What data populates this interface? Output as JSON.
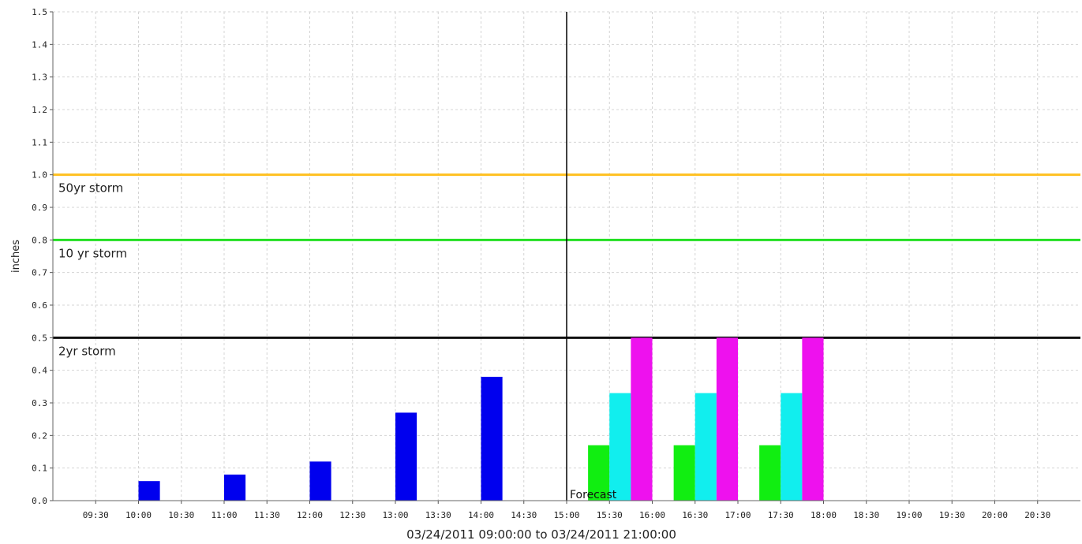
{
  "chart_data": {
    "type": "bar",
    "title": "",
    "xlabel": "03/24/2011 09:00:00 to 03/24/2011 21:00:00",
    "ylabel": "inches",
    "ylim": [
      0,
      1.5
    ],
    "y_ticks": [
      0.0,
      0.1,
      0.2,
      0.3,
      0.4,
      0.5,
      0.6,
      0.7,
      0.8,
      0.9,
      1.0,
      1.1,
      1.2,
      1.3,
      1.4,
      1.5
    ],
    "y_tick_labels": [
      "0.0",
      "0.1",
      "0.2",
      "0.3",
      "0.4",
      "0.5",
      "0.6",
      "0.7",
      "0.8",
      "0.9",
      "1.0",
      "1.1",
      "1.2",
      "1.3",
      "1.4",
      "1.5"
    ],
    "x_range": [
      "09:00",
      "21:00"
    ],
    "x_tick_labels": [
      "09:30",
      "10:00",
      "10:30",
      "11:00",
      "11:30",
      "12:00",
      "12:30",
      "13:00",
      "13:30",
      "14:00",
      "14:30",
      "15:00",
      "15:30",
      "16:00",
      "16:30",
      "17:00",
      "17:30",
      "18:00",
      "18:30",
      "19:00",
      "19:30",
      "20:00",
      "20:30"
    ],
    "grid": true,
    "forecast_divider": {
      "time": "15:00",
      "label": "Forecast"
    },
    "thresholds": [
      {
        "label": "50yr storm",
        "value": 1.0,
        "color": "#ffc020"
      },
      {
        "label": "10 yr storm",
        "value": 0.8,
        "color": "#22e022"
      },
      {
        "label": "2yr storm",
        "value": 0.5,
        "color": "#111111"
      }
    ],
    "series": [
      {
        "color": "#0000ee",
        "bars": [
          {
            "start": "10:00",
            "end": "10:15",
            "value": 0.06
          },
          {
            "start": "11:00",
            "end": "11:15",
            "value": 0.08
          },
          {
            "start": "12:00",
            "end": "12:15",
            "value": 0.12
          },
          {
            "start": "13:00",
            "end": "13:15",
            "value": 0.27
          },
          {
            "start": "14:00",
            "end": "14:15",
            "value": 0.38
          }
        ]
      },
      {
        "color": "#11ee11",
        "bars": [
          {
            "start": "15:15",
            "end": "15:30",
            "value": 0.17
          },
          {
            "start": "16:15",
            "end": "16:30",
            "value": 0.17
          },
          {
            "start": "17:15",
            "end": "17:30",
            "value": 0.17
          }
        ]
      },
      {
        "color": "#11eeee",
        "bars": [
          {
            "start": "15:30",
            "end": "15:45",
            "value": 0.33
          },
          {
            "start": "16:30",
            "end": "16:45",
            "value": 0.33
          },
          {
            "start": "17:30",
            "end": "17:45",
            "value": 0.33
          }
        ]
      },
      {
        "color": "#ee11ee",
        "bars": [
          {
            "start": "15:45",
            "end": "16:00",
            "value": 0.5
          },
          {
            "start": "16:45",
            "end": "17:00",
            "value": 0.5
          },
          {
            "start": "17:45",
            "end": "18:00",
            "value": 0.5
          }
        ]
      }
    ]
  }
}
